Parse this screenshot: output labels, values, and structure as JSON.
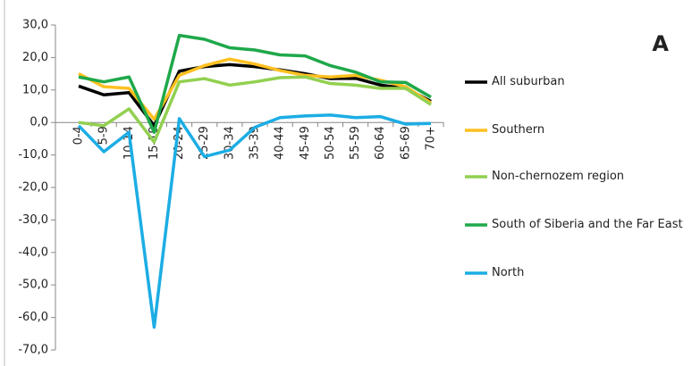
{
  "chart_data": {
    "type": "line",
    "annotation": "A",
    "categories": [
      "0-4",
      "5-9",
      "10-14",
      "15-19",
      "20-24",
      "25-29",
      "30-34",
      "35-39",
      "40-44",
      "45-49",
      "50-54",
      "55-59",
      "60-64",
      "65-69",
      "70+"
    ],
    "series": [
      {
        "name": "All suburban",
        "color": "#000000",
        "values": [
          11.2,
          8.5,
          9.2,
          -1,
          15.8,
          17.2,
          17.8,
          17.2,
          16.2,
          15,
          13.5,
          13.6,
          11.5,
          10.5,
          6.5
        ]
      },
      {
        "name": "Southern",
        "color": "#ffc020",
        "values": [
          15,
          11,
          10.5,
          1,
          14.5,
          17.5,
          19.5,
          18,
          16,
          14.5,
          14,
          14.5,
          13,
          11,
          6
        ]
      },
      {
        "name": "Non-chernozem region",
        "color": "#92d050",
        "values": [
          0,
          -1,
          4.2,
          -6,
          12.5,
          13.5,
          11.5,
          12.5,
          13.8,
          14,
          12,
          11.5,
          10.5,
          10.5,
          5.5
        ]
      },
      {
        "name": "South of Siberia and the Far East",
        "color": "#1fa84a",
        "values": [
          14,
          12.5,
          14,
          -3,
          26.8,
          25.6,
          23,
          22.3,
          20.8,
          20.5,
          17.5,
          15.5,
          12.5,
          12.3,
          7.8
        ]
      },
      {
        "name": "North",
        "color": "#1cade4",
        "values": [
          -1,
          -9,
          -3,
          -63,
          1.2,
          -10.5,
          -8.5,
          -1.5,
          1.5,
          2,
          2.3,
          1.5,
          1.8,
          -0.5,
          -0.3
        ]
      }
    ],
    "ylim": [
      -70,
      30
    ],
    "yticks": [
      {
        "value": -70,
        "label": "-70,0"
      },
      {
        "value": -60,
        "label": "-60,0"
      },
      {
        "value": -50,
        "label": "-50,0"
      },
      {
        "value": -40,
        "label": "-40,0"
      },
      {
        "value": -30,
        "label": "-30,0"
      },
      {
        "value": -20,
        "label": "-20,0"
      },
      {
        "value": -10,
        "label": "-10,0"
      },
      {
        "value": 0,
        "label": "0,0"
      },
      {
        "value": 10,
        "label": "10,0"
      },
      {
        "value": 20,
        "label": "20,0"
      },
      {
        "value": 30,
        "label": "30,0"
      }
    ],
    "grid": false
  }
}
